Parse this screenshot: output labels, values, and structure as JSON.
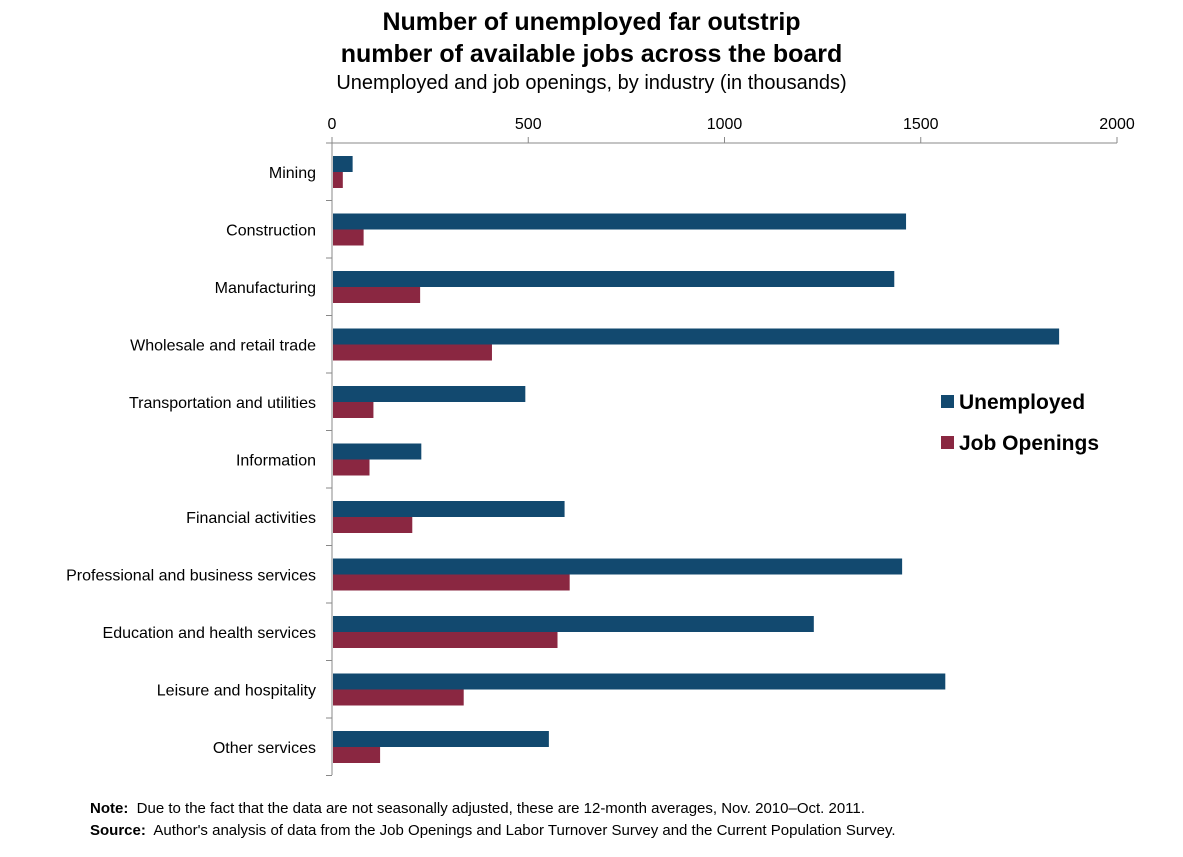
{
  "chart_data": {
    "type": "bar",
    "orientation": "horizontal",
    "title_line1": "Number of unemployed far outstrip",
    "title_line2": "number of available jobs across the board",
    "subtitle": "Unemployed and job openings, by industry (in thousands)",
    "categories": [
      "Mining",
      "Construction",
      "Manufacturing",
      "Wholesale and retail trade",
      "Transportation and utilities",
      "Information",
      "Financial activities",
      "Professional and business services",
      "Education and health services",
      "Leisure and hospitality",
      "Other services"
    ],
    "series": [
      {
        "name": "Unemployed",
        "color": "#12496f",
        "values": [
          50,
          1460,
          1430,
          1850,
          490,
          225,
          590,
          1450,
          1225,
          1560,
          550
        ]
      },
      {
        "name": "Job Openings",
        "color": "#8a2741",
        "values": [
          25,
          78,
          222,
          405,
          103,
          93,
          202,
          603,
          572,
          333,
          120
        ]
      }
    ],
    "xlim": [
      0,
      2000
    ],
    "xticks": [
      0,
      500,
      1000,
      1500,
      2000
    ],
    "xtick_labels": [
      "0",
      "500",
      "1000",
      "1500",
      "2000"
    ],
    "xaxis_position": "top",
    "grid": false,
    "legend_position": "right"
  },
  "note": {
    "label": "Note:",
    "text": "Due to the fact that the data are not seasonally adjusted, these are 12-month averages, Nov. 2010–Oct. 2011."
  },
  "source": {
    "label": "Source:",
    "text": "Author's analysis of data from the Job Openings and Labor Turnover Survey and the Current Population Survey."
  }
}
